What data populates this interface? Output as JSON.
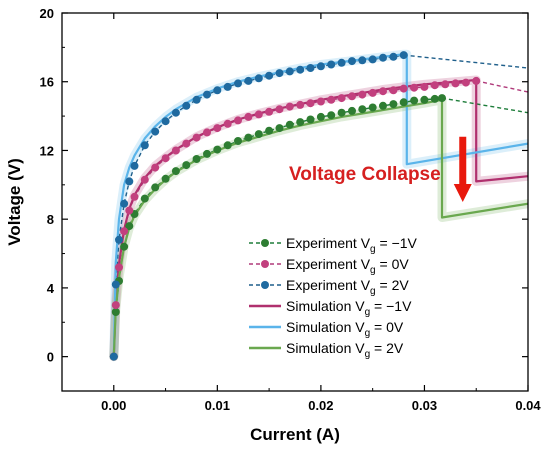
{
  "chart_data": {
    "type": "line",
    "xlabel": "Current (A)",
    "ylabel": "Voltage (V)",
    "xlim": [
      -0.005,
      0.04
    ],
    "ylim": [
      -2,
      20
    ],
    "x_ticks": [
      0.0,
      0.01,
      0.02,
      0.03,
      0.04
    ],
    "x_tick_labels": [
      "0.00",
      "0.01",
      "0.02",
      "0.03",
      "0.04"
    ],
    "y_ticks": [
      0,
      4,
      8,
      12,
      16,
      20
    ],
    "y_tick_labels": [
      "0",
      "4",
      "8",
      "12",
      "16",
      "20"
    ],
    "grid": false,
    "legend_position": "center-right",
    "annotation": {
      "text": "Voltage Collapse",
      "color": "#d62020",
      "arrow_color": "#e8180c",
      "arrow_x": 0.0337,
      "arrow_y_from": 12.8,
      "arrow_y_to": 9.0
    },
    "series": [
      {
        "name": "Experiment V_g = −1V",
        "label_main": "Experiment V",
        "label_sub": "g",
        "label_tail": " = −1V",
        "kind": "experiment",
        "color": "#1e7d3a",
        "marker_color": "#2e7d32",
        "x": [
          0.0,
          0.0002,
          0.0005,
          0.001,
          0.0015,
          0.002,
          0.003,
          0.004,
          0.005,
          0.006,
          0.007,
          0.008,
          0.009,
          0.01,
          0.011,
          0.012,
          0.013,
          0.014,
          0.015,
          0.016,
          0.017,
          0.018,
          0.019,
          0.02,
          0.021,
          0.022,
          0.023,
          0.024,
          0.025,
          0.026,
          0.027,
          0.028,
          0.029,
          0.03,
          0.031,
          0.0317
        ],
        "y": [
          0.0,
          2.6,
          4.4,
          6.4,
          7.6,
          8.3,
          9.2,
          9.85,
          10.35,
          10.8,
          11.15,
          11.5,
          11.8,
          12.05,
          12.3,
          12.55,
          12.75,
          12.95,
          13.15,
          13.3,
          13.5,
          13.65,
          13.8,
          13.95,
          14.05,
          14.2,
          14.3,
          14.4,
          14.5,
          14.6,
          14.7,
          14.8,
          14.9,
          14.95,
          15.0,
          15.05
        ],
        "extension_x": [
          0.0317,
          0.04
        ],
        "extension_y": [
          15.05,
          14.2
        ]
      },
      {
        "name": "Experiment V_g =  0V",
        "label_main": "Experiment V",
        "label_sub": "g",
        "label_tail": " =  0V",
        "kind": "experiment",
        "color": "#b03a7a",
        "marker_color": "#c2407e",
        "x": [
          0.0,
          0.0002,
          0.0005,
          0.001,
          0.0015,
          0.002,
          0.003,
          0.004,
          0.005,
          0.006,
          0.007,
          0.008,
          0.009,
          0.01,
          0.011,
          0.012,
          0.013,
          0.014,
          0.015,
          0.016,
          0.017,
          0.018,
          0.019,
          0.02,
          0.021,
          0.022,
          0.023,
          0.024,
          0.025,
          0.026,
          0.027,
          0.028,
          0.029,
          0.03,
          0.031,
          0.032,
          0.033,
          0.034,
          0.035
        ],
        "y": [
          0.0,
          3.0,
          5.2,
          7.3,
          8.5,
          9.3,
          10.3,
          11.0,
          11.55,
          12.0,
          12.4,
          12.75,
          13.05,
          13.3,
          13.55,
          13.75,
          13.95,
          14.1,
          14.25,
          14.4,
          14.55,
          14.65,
          14.75,
          14.85,
          14.95,
          15.05,
          15.15,
          15.25,
          15.35,
          15.45,
          15.5,
          15.6,
          15.65,
          15.7,
          15.8,
          15.85,
          15.9,
          15.95,
          16.05
        ],
        "extension_x": [
          0.035,
          0.04
        ],
        "extension_y": [
          16.05,
          15.4
        ]
      },
      {
        "name": "Experiment V_g =  2V",
        "label_main": "Experiment V",
        "label_sub": "g",
        "label_tail": " =  2V",
        "kind": "experiment",
        "color": "#1f5f8b",
        "marker_color": "#1f6aa0",
        "x": [
          0.0,
          0.0002,
          0.0005,
          0.001,
          0.0015,
          0.002,
          0.003,
          0.004,
          0.005,
          0.006,
          0.007,
          0.008,
          0.009,
          0.01,
          0.011,
          0.012,
          0.013,
          0.014,
          0.015,
          0.016,
          0.017,
          0.018,
          0.019,
          0.02,
          0.021,
          0.022,
          0.023,
          0.024,
          0.025,
          0.026,
          0.027,
          0.028
        ],
        "y": [
          0.0,
          4.2,
          6.8,
          8.9,
          10.2,
          11.1,
          12.3,
          13.1,
          13.7,
          14.2,
          14.6,
          14.95,
          15.25,
          15.5,
          15.7,
          15.9,
          16.05,
          16.2,
          16.35,
          16.5,
          16.6,
          16.7,
          16.8,
          16.9,
          17.0,
          17.1,
          17.2,
          17.25,
          17.3,
          17.4,
          17.45,
          17.55
        ],
        "extension_x": [
          0.028,
          0.04
        ],
        "extension_y": [
          17.55,
          16.8
        ]
      },
      {
        "name": "Simulation V_g = −1V",
        "label_main": "Simulation V",
        "label_sub": "g",
        "label_tail": " = −1V",
        "kind": "simulation",
        "color": "#b0306e",
        "x": [
          0.0,
          0.0002,
          0.0005,
          0.001,
          0.0015,
          0.002,
          0.003,
          0.004,
          0.005,
          0.006,
          0.008,
          0.01,
          0.012,
          0.014,
          0.016,
          0.018,
          0.02,
          0.022,
          0.024,
          0.026,
          0.028,
          0.03,
          0.032,
          0.034,
          0.035,
          0.035,
          0.04
        ],
        "y": [
          0.0,
          3.2,
          5.4,
          7.4,
          8.6,
          9.4,
          10.4,
          11.1,
          11.6,
          12.05,
          12.8,
          13.35,
          13.8,
          14.15,
          14.45,
          14.7,
          14.95,
          15.15,
          15.35,
          15.55,
          15.7,
          15.85,
          15.95,
          16.05,
          16.1,
          10.2,
          10.5
        ]
      },
      {
        "name": "Simulation V_g =  0V",
        "label_main": "Simulation V",
        "label_sub": "g",
        "label_tail": " =  0V",
        "kind": "simulation",
        "color": "#5ab4ea",
        "x": [
          0.0,
          0.0002,
          0.0005,
          0.001,
          0.0015,
          0.002,
          0.003,
          0.004,
          0.005,
          0.006,
          0.008,
          0.01,
          0.012,
          0.014,
          0.016,
          0.018,
          0.02,
          0.022,
          0.024,
          0.026,
          0.028,
          0.0283,
          0.0283,
          0.04
        ],
        "y": [
          0.0,
          5.5,
          8.0,
          10.0,
          11.0,
          11.7,
          12.7,
          13.4,
          13.95,
          14.4,
          15.1,
          15.6,
          16.0,
          16.3,
          16.55,
          16.8,
          17.0,
          17.15,
          17.3,
          17.45,
          17.6,
          17.6,
          11.2,
          12.4
        ]
      },
      {
        "name": "Simulation V_g =  2V",
        "label_main": "Simulation V",
        "label_sub": "g",
        "label_tail": " =  2V",
        "kind": "simulation",
        "color": "#6aa84f",
        "x": [
          0.0,
          0.0002,
          0.0005,
          0.001,
          0.0015,
          0.002,
          0.003,
          0.004,
          0.005,
          0.006,
          0.008,
          0.01,
          0.012,
          0.014,
          0.016,
          0.018,
          0.02,
          0.022,
          0.024,
          0.026,
          0.028,
          0.03,
          0.0317,
          0.0317,
          0.04
        ],
        "y": [
          0.0,
          2.8,
          4.6,
          6.4,
          7.5,
          8.2,
          9.1,
          9.75,
          10.3,
          10.75,
          11.45,
          12.0,
          12.45,
          12.8,
          13.15,
          13.45,
          13.7,
          13.95,
          14.15,
          14.35,
          14.55,
          14.75,
          14.95,
          8.1,
          8.9
        ]
      }
    ]
  }
}
